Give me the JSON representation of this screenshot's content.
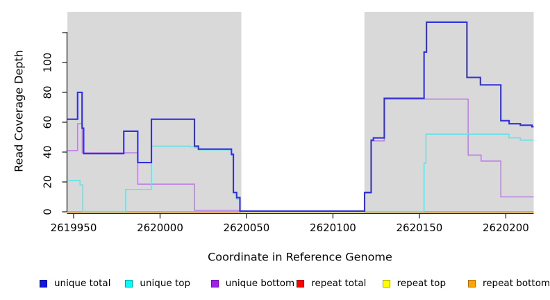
{
  "chart_data": {
    "type": "line",
    "subtype": "step-coverage",
    "title": "",
    "xlabel": "Coordinate in Reference Genome",
    "ylabel": "Read Coverage Depth",
    "x_range": [
      2619946,
      2620216
    ],
    "y_range": [
      0,
      133
    ],
    "grid": "off",
    "x_ticks": [
      2619950,
      2620000,
      2620050,
      2620100,
      2620150,
      2620200
    ],
    "x_tick_labels": [
      "2619950",
      "2620000",
      "2620050",
      "2620100",
      "2620150",
      "2620200"
    ],
    "y_ticks": [
      0,
      20,
      40,
      60,
      80,
      100,
      120
    ],
    "y_tick_labels": [
      "0",
      "20",
      "40",
      "60",
      "80",
      "100",
      ""
    ],
    "background_regions": {
      "color": "#d9d9d9",
      "note": "gray shaded genome spans; middle span is uncovered white gap",
      "spans": [
        [
          2619946.4,
          2620047.0
        ],
        [
          2620118.2,
          2620216.1
        ]
      ]
    },
    "series": [
      {
        "name": "repeat total",
        "color": "#e02020",
        "width": 1.4,
        "end": 2620216.1,
        "steps": [
          [
            2619946.4,
            0
          ]
        ]
      },
      {
        "name": "repeat top",
        "color": "#f5f500",
        "width": 1.4,
        "end": 2620216.1,
        "steps": [
          [
            2619946.4,
            0
          ]
        ]
      },
      {
        "name": "repeat bottom",
        "color": "#ffa500",
        "width": 2,
        "end": 2620216.1,
        "steps": [
          [
            2619946.4,
            0
          ]
        ]
      },
      {
        "name": "unique bottom",
        "color": "#bd80e4",
        "width": 1.6,
        "end": 2620216.1,
        "steps": [
          [
            2619946.4,
            41
          ],
          [
            2619952.3,
            59
          ],
          [
            2619955.0,
            39.5
          ],
          [
            2619987.1,
            18.5
          ],
          [
            2620019.9,
            1
          ],
          [
            2620046.2,
            0.4
          ],
          [
            2620118.3,
            12.5
          ],
          [
            2620122.1,
            47.5
          ],
          [
            2620129.7,
            75.5
          ],
          [
            2620178.2,
            38
          ],
          [
            2620185.7,
            34
          ],
          [
            2620197.1,
            10
          ]
        ]
      },
      {
        "name": "unique top",
        "color": "#63e3e8",
        "width": 1.6,
        "end": 2620216.1,
        "steps": [
          [
            2619946.4,
            21
          ],
          [
            2619953.7,
            18
          ],
          [
            2619955.3,
            0.2
          ],
          [
            2619980.1,
            15
          ],
          [
            2619995.0,
            44
          ],
          [
            2620017.1,
            43.5
          ],
          [
            2620019.9,
            43
          ],
          [
            2620022.2,
            41.5
          ],
          [
            2620041.3,
            37.5
          ],
          [
            2620042.4,
            12
          ],
          [
            2620044.3,
            8.5
          ],
          [
            2620046.2,
            0.2
          ],
          [
            2620152.7,
            32.5
          ],
          [
            2620153.8,
            52
          ],
          [
            2620201.8,
            49.5
          ],
          [
            2620208.4,
            48
          ]
        ]
      },
      {
        "name": "unique total",
        "color": "#3131dc",
        "width": 2.1,
        "end": 2620216.1,
        "steps": [
          [
            2619946.4,
            62
          ],
          [
            2619952.3,
            80
          ],
          [
            2619954.9,
            56
          ],
          [
            2619955.8,
            39
          ],
          [
            2619979.0,
            54
          ],
          [
            2619987.1,
            33
          ],
          [
            2619995.0,
            62
          ],
          [
            2620019.9,
            44
          ],
          [
            2620022.2,
            42
          ],
          [
            2620041.3,
            38.5
          ],
          [
            2620042.4,
            13
          ],
          [
            2620044.3,
            9.5
          ],
          [
            2620046.2,
            0.5
          ],
          [
            2620118.3,
            13
          ],
          [
            2620122.1,
            48
          ],
          [
            2620123.4,
            49.5
          ],
          [
            2620129.7,
            76
          ],
          [
            2620152.7,
            107
          ],
          [
            2620154.1,
            127
          ],
          [
            2620177.5,
            90
          ],
          [
            2620185.3,
            85
          ],
          [
            2620197.1,
            61
          ],
          [
            2620201.9,
            59
          ],
          [
            2620208.4,
            58
          ],
          [
            2620215.1,
            57
          ]
        ]
      }
    ],
    "legend": [
      {
        "label": "unique total",
        "color": "#1414e6",
        "border": "#000099"
      },
      {
        "label": "unique top",
        "color": "#00ffff",
        "border": "#00a3a3"
      },
      {
        "label": "unique bottom",
        "color": "#a020f0",
        "border": "#6c14a3"
      },
      {
        "label": "repeat total",
        "color": "#ff0000",
        "border": "#a00000"
      },
      {
        "label": "repeat top",
        "color": "#ffff00",
        "border": "#a3a300"
      },
      {
        "label": "repeat bottom",
        "color": "#ffa500",
        "border": "#b36e00"
      }
    ],
    "legend_position": "bottom"
  }
}
